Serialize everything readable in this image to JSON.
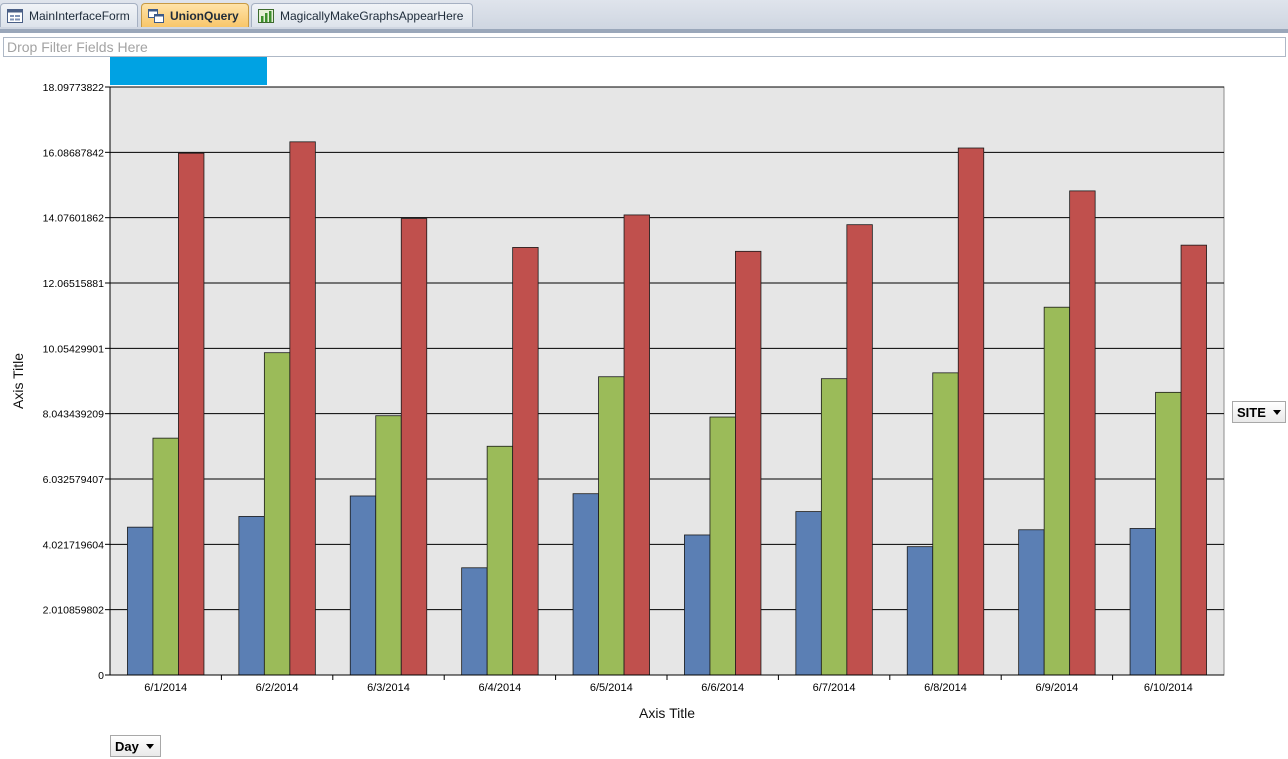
{
  "tabs": [
    {
      "label": "MainInterfaceForm",
      "icon": "form-icon",
      "active": false
    },
    {
      "label": "UnionQuery",
      "icon": "query-icon",
      "active": true
    },
    {
      "label": "MagicallyMakeGraphsAppearHere",
      "icon": "chart-icon",
      "active": false
    }
  ],
  "filter_zone": {
    "placeholder": "Drop Filter Fields Here"
  },
  "field_buttons": {
    "series_field": "SITE",
    "category_field": "Day"
  },
  "colors": {
    "series": [
      "#5b7fb4",
      "#9bbb59",
      "#c0504d"
    ],
    "plot_background": "#e6e6e6",
    "active_tab": "#f8c66a",
    "chip": "#00a2e3"
  },
  "chart_data": {
    "type": "bar",
    "title": "",
    "xlabel": "Axis Title",
    "ylabel": "Axis Title",
    "categories": [
      "6/1/2014",
      "6/2/2014",
      "6/3/2014",
      "6/4/2014",
      "6/5/2014",
      "6/6/2014",
      "6/7/2014",
      "6/8/2014",
      "6/9/2014",
      "6/10/2014"
    ],
    "series": [
      {
        "values": [
          4.55,
          4.88,
          5.51,
          3.3,
          5.58,
          4.31,
          5.03,
          3.95,
          4.47,
          4.51
        ]
      },
      {
        "values": [
          7.29,
          9.92,
          7.98,
          7.04,
          9.18,
          7.94,
          9.12,
          9.3,
          11.32,
          8.7
        ]
      },
      {
        "values": [
          16.06,
          16.41,
          14.05,
          13.16,
          14.16,
          13.04,
          13.86,
          16.22,
          14.9,
          13.23
        ]
      }
    ],
    "yticks": [
      "0",
      "2.010859802",
      "4.021719604",
      "6.032579407",
      "8.043439209",
      "10.05429901",
      "12.06515881",
      "14.07601862",
      "16.08687842",
      "18.09773822"
    ],
    "ylim": [
      0,
      18.09773822
    ],
    "grid": true,
    "legend": "none"
  }
}
